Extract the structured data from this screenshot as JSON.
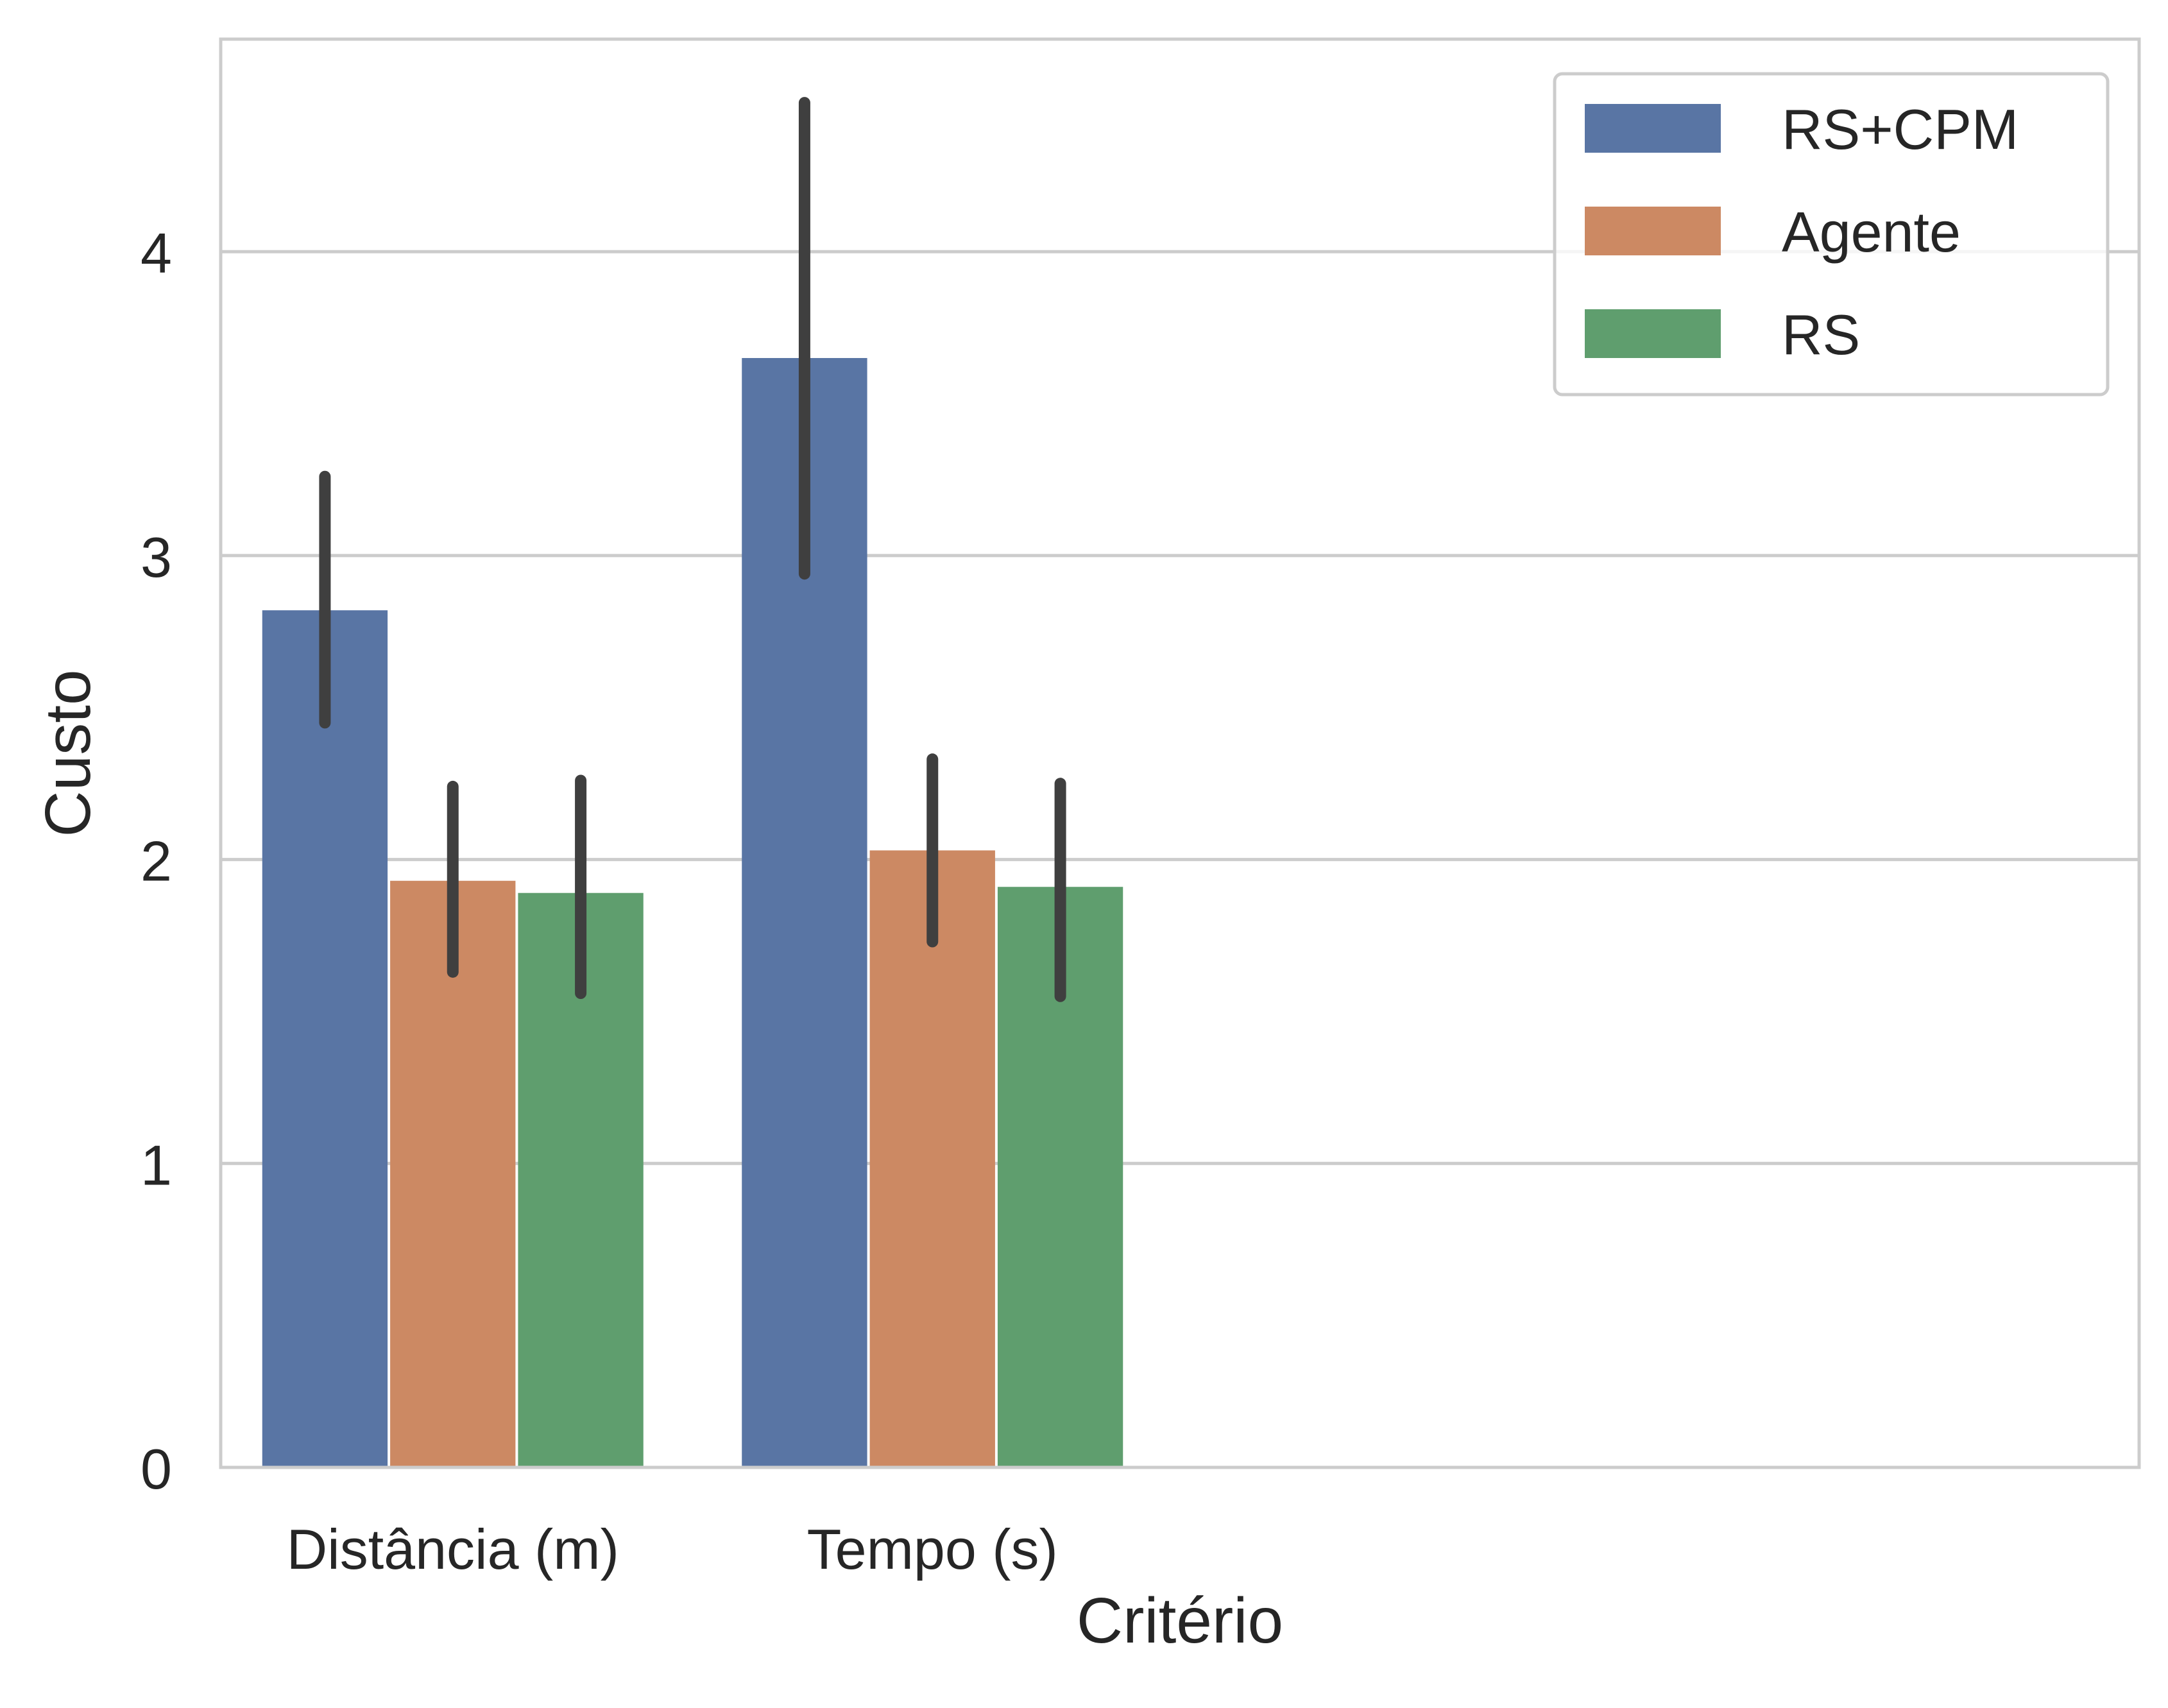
{
  "chart_data": {
    "type": "bar",
    "xlabel": "Critério",
    "ylabel": "Custo",
    "categories": [
      "Distância (m)",
      "Tempo (s)"
    ],
    "ylim": [
      0,
      4.7
    ],
    "yticks": [
      0,
      1,
      2,
      3,
      4
    ],
    "grid": "horizontal",
    "legend_position": "top-right",
    "series": [
      {
        "name": "RS+CPM",
        "color": "#5975a4",
        "values": [
          2.82,
          3.65
        ],
        "ci_low": [
          2.45,
          2.94
        ],
        "ci_high": [
          3.26,
          4.49
        ]
      },
      {
        "name": "Agente",
        "color": "#cc8963",
        "values": [
          1.93,
          2.03
        ],
        "ci_low": [
          1.63,
          1.73
        ],
        "ci_high": [
          2.24,
          2.33
        ]
      },
      {
        "name": "RS",
        "color": "#5f9e6e",
        "values": [
          1.89,
          1.91
        ],
        "ci_low": [
          1.56,
          1.55
        ],
        "ci_high": [
          2.26,
          2.25
        ]
      }
    ]
  }
}
